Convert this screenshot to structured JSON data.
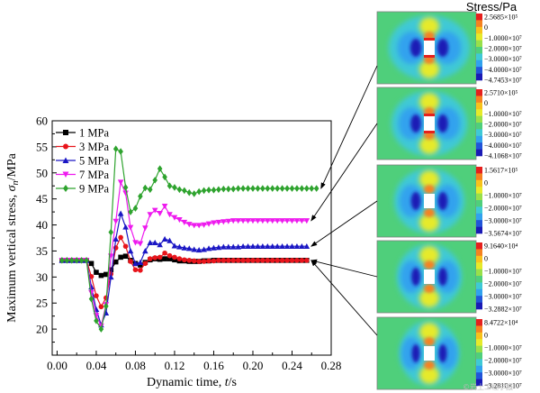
{
  "chart_data": {
    "type": "line",
    "xlabel": "Dynamic time, ",
    "xlabel_var": "t",
    "xlabel_unit": "/s",
    "ylabel": "Maximum vertical stress, ",
    "ylabel_var": "σ",
    "ylabel_sub": "n",
    "ylabel_unit": "/MPa",
    "xlim": [
      -0.005,
      0.28
    ],
    "ylim": [
      15,
      60
    ],
    "xticks": [
      0.0,
      0.04,
      0.08,
      0.12,
      0.16,
      0.2,
      0.24,
      0.28
    ],
    "xtick_labels": [
      "0.00",
      "0.04",
      "0.08",
      "0.12",
      "0.16",
      "0.20",
      "0.24",
      "0.28"
    ],
    "yticks": [
      20,
      25,
      30,
      35,
      40,
      45,
      50,
      55,
      60
    ],
    "ytick_labels": [
      "20",
      "25",
      "30",
      "35",
      "40",
      "45",
      "50",
      "55",
      "60"
    ],
    "legend_position": "top-left",
    "grid": false,
    "series": [
      {
        "name": "1 MPa",
        "color": "#000000",
        "marker": "square",
        "x": [
          0.005,
          0.01,
          0.015,
          0.02,
          0.025,
          0.03,
          0.035,
          0.04,
          0.045,
          0.05,
          0.055,
          0.06,
          0.065,
          0.07,
          0.075,
          0.08,
          0.085,
          0.09,
          0.095,
          0.1,
          0.105,
          0.11,
          0.115,
          0.12,
          0.125,
          0.13,
          0.135,
          0.14,
          0.145,
          0.15,
          0.155,
          0.16,
          0.165,
          0.17,
          0.175,
          0.18,
          0.185,
          0.19,
          0.195,
          0.2,
          0.205,
          0.21,
          0.215,
          0.22,
          0.225,
          0.23,
          0.235,
          0.24,
          0.245,
          0.25,
          0.255
        ],
        "y": [
          33.2,
          33.2,
          33.2,
          33.2,
          33.2,
          33.2,
          32.6,
          30.9,
          30.3,
          30.5,
          31.4,
          32.9,
          33.8,
          34.0,
          33.2,
          32.6,
          32.3,
          32.8,
          33.3,
          33.5,
          33.4,
          33.5,
          33.5,
          33.3,
          33.1,
          33.1,
          33.0,
          33.0,
          33.0,
          33.1,
          33.1,
          33.2,
          33.2,
          33.2,
          33.2,
          33.2,
          33.2,
          33.2,
          33.2,
          33.2,
          33.2,
          33.2,
          33.2,
          33.2,
          33.2,
          33.2,
          33.2,
          33.2,
          33.2,
          33.2,
          33.2
        ]
      },
      {
        "name": "3 MPa",
        "color": "#e8141b",
        "marker": "circle",
        "x": [
          0.005,
          0.01,
          0.015,
          0.02,
          0.025,
          0.03,
          0.035,
          0.04,
          0.045,
          0.05,
          0.055,
          0.06,
          0.065,
          0.07,
          0.075,
          0.08,
          0.085,
          0.09,
          0.095,
          0.1,
          0.105,
          0.11,
          0.115,
          0.12,
          0.125,
          0.13,
          0.135,
          0.14,
          0.145,
          0.15,
          0.155,
          0.16,
          0.165,
          0.17,
          0.175,
          0.18,
          0.185,
          0.19,
          0.195,
          0.2,
          0.205,
          0.21,
          0.215,
          0.22,
          0.225,
          0.23,
          0.235,
          0.24,
          0.245,
          0.25,
          0.255
        ],
        "y": [
          33.2,
          33.2,
          33.2,
          33.2,
          33.2,
          33.2,
          30.1,
          26.4,
          24.3,
          26.0,
          30.6,
          35.6,
          37.6,
          35.9,
          33.0,
          31.4,
          31.3,
          32.6,
          33.5,
          33.7,
          33.8,
          34.6,
          34.1,
          33.8,
          33.5,
          33.3,
          33.2,
          33.1,
          33.0,
          33.0,
          33.1,
          33.1,
          33.2,
          33.2,
          33.2,
          33.2,
          33.2,
          33.2,
          33.2,
          33.2,
          33.2,
          33.2,
          33.2,
          33.2,
          33.2,
          33.2,
          33.2,
          33.2,
          33.2,
          33.2,
          33.2
        ]
      },
      {
        "name": "5 MPa",
        "color": "#1a16c4",
        "marker": "triangle-up",
        "x": [
          0.005,
          0.01,
          0.015,
          0.02,
          0.025,
          0.03,
          0.035,
          0.04,
          0.045,
          0.05,
          0.055,
          0.06,
          0.065,
          0.07,
          0.075,
          0.08,
          0.085,
          0.09,
          0.095,
          0.1,
          0.105,
          0.11,
          0.115,
          0.12,
          0.125,
          0.13,
          0.135,
          0.14,
          0.145,
          0.15,
          0.155,
          0.16,
          0.165,
          0.17,
          0.175,
          0.18,
          0.185,
          0.19,
          0.195,
          0.2,
          0.205,
          0.21,
          0.215,
          0.22,
          0.225,
          0.23,
          0.235,
          0.24,
          0.245,
          0.25,
          0.255
        ],
        "y": [
          33.2,
          33.2,
          33.2,
          33.2,
          33.2,
          33.2,
          28.1,
          23.8,
          20.8,
          23.1,
          30.0,
          37.3,
          42.2,
          39.6,
          35.0,
          32.6,
          32.8,
          35.0,
          36.6,
          36.6,
          36.2,
          37.3,
          37.0,
          36.0,
          35.8,
          35.6,
          35.5,
          35.3,
          35.2,
          35.3,
          35.5,
          35.6,
          35.7,
          35.8,
          35.8,
          35.8,
          35.8,
          35.9,
          35.9,
          35.9,
          35.9,
          35.9,
          35.9,
          35.9,
          35.9,
          35.9,
          35.9,
          35.9,
          35.9,
          35.9,
          35.9
        ]
      },
      {
        "name": "7 MPa",
        "color": "#ee1aee",
        "marker": "triangle-down",
        "x": [
          0.005,
          0.01,
          0.015,
          0.02,
          0.025,
          0.03,
          0.035,
          0.04,
          0.045,
          0.05,
          0.055,
          0.06,
          0.065,
          0.07,
          0.075,
          0.08,
          0.085,
          0.09,
          0.095,
          0.1,
          0.105,
          0.11,
          0.115,
          0.12,
          0.125,
          0.13,
          0.135,
          0.14,
          0.145,
          0.15,
          0.155,
          0.16,
          0.165,
          0.17,
          0.175,
          0.18,
          0.185,
          0.19,
          0.195,
          0.2,
          0.205,
          0.21,
          0.215,
          0.22,
          0.225,
          0.23,
          0.235,
          0.24,
          0.245,
          0.25,
          0.255
        ],
        "y": [
          33.2,
          33.2,
          33.2,
          33.2,
          33.2,
          33.2,
          27.0,
          22.6,
          20.6,
          24.7,
          34.0,
          40.7,
          48.2,
          46.1,
          39.5,
          36.6,
          36.4,
          39.4,
          42.0,
          42.8,
          42.2,
          43.6,
          42.0,
          41.4,
          41.0,
          40.5,
          40.1,
          39.9,
          39.9,
          40.0,
          40.2,
          40.4,
          40.5,
          40.6,
          40.7,
          40.8,
          40.8,
          40.8,
          40.8,
          40.8,
          40.8,
          40.8,
          40.8,
          40.8,
          40.8,
          40.8,
          40.8,
          40.8,
          40.8,
          40.8,
          40.8
        ]
      },
      {
        "name": "9 MPa",
        "color": "#2ea32e",
        "marker": "diamond",
        "x": [
          0.005,
          0.01,
          0.015,
          0.02,
          0.025,
          0.03,
          0.035,
          0.04,
          0.045,
          0.05,
          0.055,
          0.06,
          0.065,
          0.07,
          0.075,
          0.08,
          0.085,
          0.09,
          0.095,
          0.1,
          0.105,
          0.11,
          0.115,
          0.12,
          0.125,
          0.13,
          0.135,
          0.14,
          0.145,
          0.15,
          0.155,
          0.16,
          0.165,
          0.17,
          0.175,
          0.18,
          0.185,
          0.19,
          0.195,
          0.2,
          0.205,
          0.21,
          0.215,
          0.22,
          0.225,
          0.23,
          0.235,
          0.24,
          0.245,
          0.25,
          0.255,
          0.26,
          0.265
        ],
        "y": [
          33.2,
          33.2,
          33.2,
          33.2,
          33.2,
          33.2,
          25.8,
          21.6,
          20.0,
          24.4,
          38.6,
          54.6,
          54.1,
          47.2,
          42.5,
          43.2,
          45.5,
          47.1,
          46.8,
          48.6,
          50.8,
          49.2,
          47.5,
          47.2,
          46.8,
          46.6,
          46.2,
          46.0,
          46.4,
          46.6,
          46.7,
          46.7,
          46.8,
          46.9,
          46.9,
          46.9,
          47.0,
          47.0,
          47.0,
          47.0,
          47.0,
          47.0,
          47.0,
          47.0,
          47.0,
          47.0,
          47.0,
          47.0,
          47.0,
          47.0,
          47.0,
          47.0,
          47.0
        ]
      }
    ]
  },
  "contour_panels": {
    "title": "Stress/Pa",
    "colors": [
      "#e5201d",
      "#f58220",
      "#f7c21b",
      "#e6ea2a",
      "#98e04a",
      "#4fcf7b",
      "#3fc9d6",
      "#31a2ee",
      "#2155d9",
      "#1a1ab5"
    ],
    "panels": [
      {
        "name": "9 MPa",
        "labels": [
          "2.5685×10⁵",
          "0",
          "−1.0000×10⁷",
          "−2.0000×10⁷",
          "−3.0000×10⁷",
          "−4.0000×10⁷",
          "−4.7453×10⁷"
        ]
      },
      {
        "name": "7 MPa",
        "labels": [
          "2.5710×10⁵",
          "0",
          "−1.0000×10⁷",
          "−2.0000×10⁷",
          "−3.0000×10⁷",
          "−4.0000×10⁷",
          "−4.1068×10⁷"
        ]
      },
      {
        "name": "5 MPa",
        "labels": [
          "1.5617×10⁵",
          "0",
          "−1.0000×10⁷",
          "−2.0000×10⁷",
          "−3.0000×10⁷",
          "−3.5674×10⁷"
        ]
      },
      {
        "name": "3 MPa",
        "labels": [
          "9.1640×10⁴",
          "0",
          "−1.0000×10⁷",
          "−2.0000×10⁷",
          "−3.0000×10⁷",
          "−3.2882×10⁷"
        ]
      },
      {
        "name": "1 MPa",
        "labels": [
          "8.4722×10⁴",
          "0",
          "−1.0000×10⁷",
          "−2.0000×10⁷",
          "−3.0000×10⁷",
          "−3.2810×10⁷"
        ]
      }
    ]
  },
  "watermark": "©岩土工程学报"
}
